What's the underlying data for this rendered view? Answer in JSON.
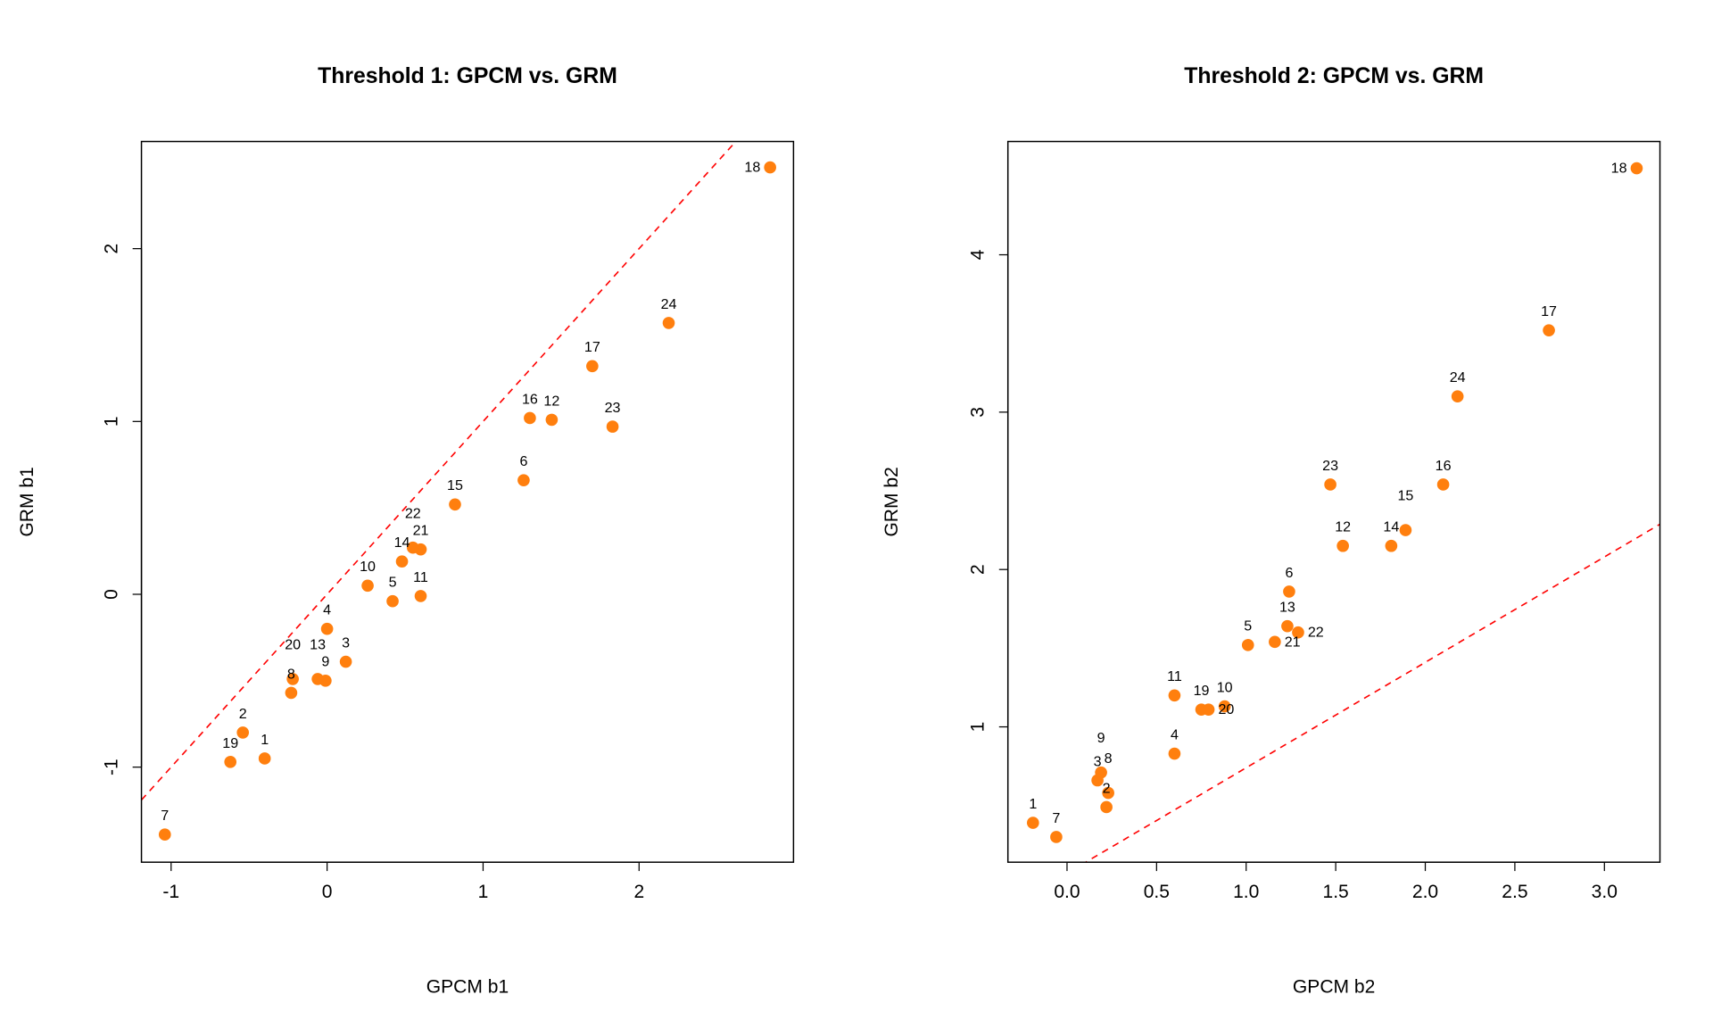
{
  "colors": {
    "point": "#FF7F0E",
    "reference_line": "#FF0000",
    "axis": "#000000"
  },
  "chart_data": [
    {
      "type": "scatter",
      "title": "Threshold 1: GPCM vs. GRM",
      "xlabel": "GPCM b1",
      "ylabel": "GRM b1",
      "xlim": [
        -1.19,
        2.99
      ],
      "ylim": [
        -1.55,
        2.62
      ],
      "xticks": [
        -1,
        0,
        1,
        2
      ],
      "xtick_labels": [
        "-1",
        "0",
        "1",
        "2"
      ],
      "yticks": [
        -1,
        0,
        1,
        2
      ],
      "ytick_labels": [
        "-1",
        "0",
        "1",
        "2"
      ],
      "reference_line": {
        "intercept": 0,
        "slope": 1,
        "style": "dashed"
      },
      "grid": false,
      "points": [
        {
          "label": "1",
          "x": -0.4,
          "y": -0.95
        },
        {
          "label": "2",
          "x": -0.54,
          "y": -0.8
        },
        {
          "label": "3",
          "x": 0.12,
          "y": -0.39
        },
        {
          "label": "4",
          "x": 0.0,
          "y": -0.2
        },
        {
          "label": "5",
          "x": 0.42,
          "y": -0.04
        },
        {
          "label": "6",
          "x": 1.26,
          "y": 0.66
        },
        {
          "label": "7",
          "x": -1.04,
          "y": -1.39
        },
        {
          "label": "8",
          "x": -0.23,
          "y": -0.57
        },
        {
          "label": "9",
          "x": -0.01,
          "y": -0.5
        },
        {
          "label": "10",
          "x": 0.26,
          "y": 0.05
        },
        {
          "label": "11",
          "x": 0.6,
          "y": -0.01
        },
        {
          "label": "12",
          "x": 1.44,
          "y": 1.01
        },
        {
          "label": "13",
          "x": -0.06,
          "y": -0.49
        },
        {
          "label": "14",
          "x": 0.48,
          "y": 0.19
        },
        {
          "label": "15",
          "x": 0.82,
          "y": 0.52
        },
        {
          "label": "16",
          "x": 1.3,
          "y": 1.02
        },
        {
          "label": "17",
          "x": 1.7,
          "y": 1.32
        },
        {
          "label": "18",
          "x": 2.84,
          "y": 2.47
        },
        {
          "label": "19",
          "x": -0.62,
          "y": -0.97
        },
        {
          "label": "20",
          "x": -0.22,
          "y": -0.49
        },
        {
          "label": "21",
          "x": 0.6,
          "y": 0.26
        },
        {
          "label": "22",
          "x": 0.55,
          "y": 0.27
        },
        {
          "label": "23",
          "x": 1.83,
          "y": 0.97
        },
        {
          "label": "24",
          "x": 2.19,
          "y": 1.57
        }
      ]
    },
    {
      "type": "scatter",
      "title": "Threshold 2: GPCM vs. GRM",
      "xlabel": "GPCM b2",
      "ylabel": "GRM b2",
      "xlim": [
        -0.33,
        3.31
      ],
      "ylim": [
        0.14,
        4.72
      ],
      "xticks": [
        0,
        0.5,
        1,
        1.5,
        2,
        2.5,
        3
      ],
      "xtick_labels": [
        "0.0",
        "0.5",
        "1.0",
        "1.5",
        "2.0",
        "2.5",
        "3.0"
      ],
      "yticks": [
        1,
        2,
        3,
        4
      ],
      "ytick_labels": [
        "1",
        "2",
        "3",
        "4"
      ],
      "reference_line": {
        "intercept": 0.07,
        "slope": 0.67,
        "style": "dashed"
      },
      "grid": false,
      "points": [
        {
          "label": "1",
          "x": -0.19,
          "y": 0.39
        },
        {
          "label": "2",
          "x": 0.22,
          "y": 0.49
        },
        {
          "label": "3",
          "x": 0.17,
          "y": 0.66
        },
        {
          "label": "4",
          "x": 0.6,
          "y": 0.83
        },
        {
          "label": "5",
          "x": 1.01,
          "y": 1.52
        },
        {
          "label": "6",
          "x": 1.24,
          "y": 1.86
        },
        {
          "label": "7",
          "x": -0.06,
          "y": 0.3
        },
        {
          "label": "8",
          "x": 0.23,
          "y": 0.58
        },
        {
          "label": "9",
          "x": 0.19,
          "y": 0.71
        },
        {
          "label": "10",
          "x": 0.88,
          "y": 1.13
        },
        {
          "label": "11",
          "x": 0.6,
          "y": 1.2
        },
        {
          "label": "12",
          "x": 1.54,
          "y": 2.15
        },
        {
          "label": "13",
          "x": 1.23,
          "y": 1.64
        },
        {
          "label": "14",
          "x": 1.81,
          "y": 2.15
        },
        {
          "label": "15",
          "x": 1.89,
          "y": 2.25
        },
        {
          "label": "16",
          "x": 2.1,
          "y": 2.54
        },
        {
          "label": "17",
          "x": 2.69,
          "y": 3.52
        },
        {
          "label": "18",
          "x": 3.18,
          "y": 4.55
        },
        {
          "label": "19",
          "x": 0.75,
          "y": 1.11
        },
        {
          "label": "20",
          "x": 0.79,
          "y": 1.11
        },
        {
          "label": "21",
          "x": 1.16,
          "y": 1.54
        },
        {
          "label": "22",
          "x": 1.29,
          "y": 1.6
        },
        {
          "label": "23",
          "x": 1.47,
          "y": 2.54
        },
        {
          "label": "24",
          "x": 2.18,
          "y": 3.1
        }
      ]
    }
  ]
}
